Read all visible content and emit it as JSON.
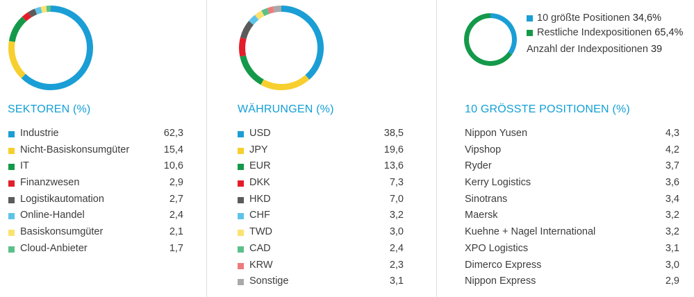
{
  "chart_data": [
    {
      "type": "pie",
      "title": "SEKTOREN (%)",
      "categories": [
        "Industrie",
        "Nicht-Basiskonsumgüter",
        "IT",
        "Finanzwesen",
        "Logistikautomation",
        "Online-Handel",
        "Basiskonsumgüter",
        "Cloud-Anbieter"
      ],
      "values": [
        62.3,
        15.4,
        10.6,
        2.9,
        2.7,
        2.4,
        2.1,
        1.7
      ],
      "labels": [
        "62,3",
        "15,4",
        "10,6",
        "2,9",
        "2,7",
        "2,4",
        "2,1",
        "1,7"
      ],
      "colors": [
        "#1a9ed5",
        "#f7cf2e",
        "#14994a",
        "#e31e2a",
        "#5b5b5b",
        "#5ec3e8",
        "#fbe26f",
        "#5cc08a"
      ]
    },
    {
      "type": "pie",
      "title": "WÄHRUNGEN (%)",
      "categories": [
        "USD",
        "JPY",
        "EUR",
        "DKK",
        "HKD",
        "CHF",
        "TWD",
        "CAD",
        "KRW",
        "Sonstige"
      ],
      "values": [
        38.5,
        19.6,
        13.6,
        7.3,
        7.0,
        3.2,
        3.0,
        2.4,
        2.3,
        3.1
      ],
      "labels": [
        "38,5",
        "19,6",
        "13,6",
        "7,3",
        "7,0",
        "3,2",
        "3,0",
        "2,4",
        "2,3",
        "3,1"
      ],
      "colors": [
        "#1a9ed5",
        "#f7cf2e",
        "#14994a",
        "#e31e2a",
        "#5b5b5b",
        "#5ec3e8",
        "#fbe26f",
        "#5cc08a",
        "#ee7b7b",
        "#a9a9a9"
      ]
    },
    {
      "type": "pie",
      "title": "",
      "categories": [
        "10 größte Positionen",
        "Restliche Indexpositionen"
      ],
      "values": [
        34.6,
        65.4
      ],
      "labels": [
        "34,6%",
        "65,4%"
      ],
      "colors": [
        "#1a9ed5",
        "#14994a"
      ]
    },
    {
      "type": "table",
      "title": "10 GRÖSSTE POSITIONEN (%)",
      "categories": [
        "Nippon Yusen",
        "Vipshop",
        "Ryder",
        "Kerry Logistics",
        "Sinotrans",
        "Maersk",
        "Kuehne + Nagel International",
        "XPO Logistics",
        "Dimerco Express",
        "Nippon Express"
      ],
      "values": [
        4.3,
        4.2,
        3.7,
        3.6,
        3.4,
        3.2,
        3.2,
        3.1,
        3.0,
        2.9
      ],
      "labels": [
        "4,3",
        "4,2",
        "3,7",
        "3,6",
        "3,4",
        "3,2",
        "3,2",
        "3,1",
        "3,0",
        "2,9"
      ]
    }
  ],
  "summary": {
    "count_label": "Anzahl der Indexpositionen",
    "count_value": "39"
  }
}
